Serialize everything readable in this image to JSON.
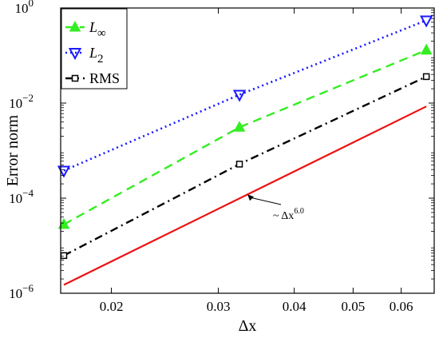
{
  "chart_data": {
    "type": "line",
    "xlabel": "Δx",
    "ylabel": "Error norm",
    "xscale": "log",
    "yscale": "log",
    "xlim": [
      0.0165,
      0.068
    ],
    "ylim": [
      1e-06,
      1
    ],
    "x_ticks": [
      {
        "value": 0.02,
        "label": "0.02"
      },
      {
        "value": 0.03,
        "label": "0.03"
      },
      {
        "value": 0.04,
        "label": "0.04"
      },
      {
        "value": 0.05,
        "label": "0.05"
      },
      {
        "value": 0.06,
        "label": "0.06"
      }
    ],
    "y_ticks": [
      {
        "value": 1e-06,
        "base": "10",
        "exp": "−6"
      },
      {
        "value": 0.0001,
        "base": "10",
        "exp": "−4"
      },
      {
        "value": 0.01,
        "base": "10",
        "exp": "−2"
      },
      {
        "value": 1,
        "base": "10",
        "exp": "0"
      }
    ],
    "grid": false,
    "legend_position": "top-left",
    "series": [
      {
        "name": "L∞",
        "label_main": "L",
        "label_sub": "∞",
        "color": "#33ee22",
        "dash": "dashed",
        "marker": "triangle-up",
        "x": [
          0.0167,
          0.0325,
          0.066
        ],
        "y": [
          2.8e-05,
          0.0031,
          0.13
        ]
      },
      {
        "name": "L2",
        "label_main": "L",
        "label_sub": "2",
        "color": "#1a1aff",
        "dash": "dotted",
        "marker": "triangle-down",
        "x": [
          0.0167,
          0.0325,
          0.066
        ],
        "y": [
          0.00038,
          0.015,
          0.55
        ]
      },
      {
        "name": "RMS",
        "label_main": "RMS",
        "label_sub": "",
        "color": "#000000",
        "dash": "dashdot",
        "marker": "square",
        "x": [
          0.0167,
          0.0325,
          0.066
        ],
        "y": [
          6.2e-06,
          0.00052,
          0.036
        ]
      }
    ],
    "reference_line": {
      "color": "#ee1111",
      "x": [
        0.0167,
        0.066
      ],
      "y": [
        1.5e-06,
        0.0085
      ]
    },
    "annotation": {
      "prefix": "~ Δx",
      "exponent": "6.0",
      "arrow_target": {
        "x": 0.0335,
        "y": 0.00012
      }
    }
  }
}
